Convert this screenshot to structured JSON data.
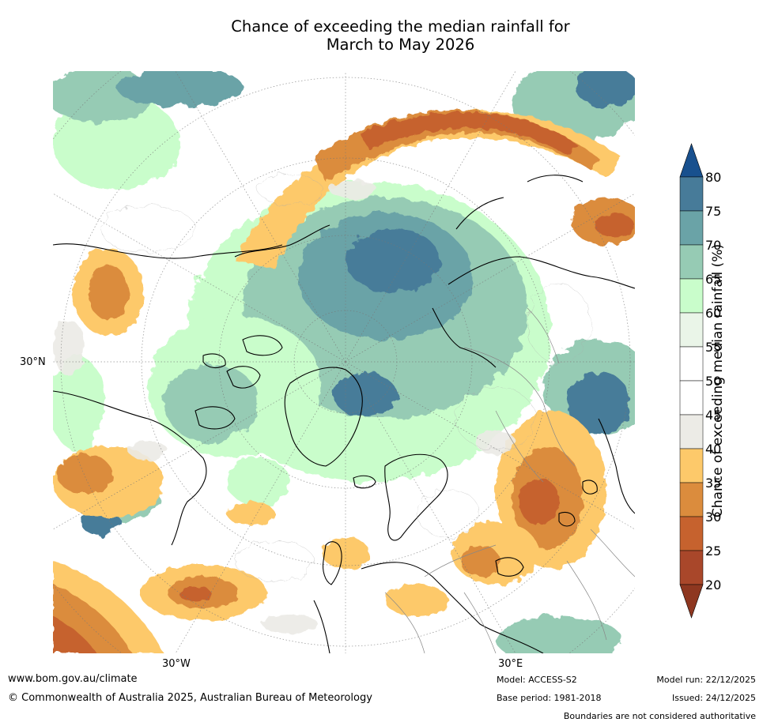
{
  "title_line1": "Chance of exceeding the median rainfall for",
  "title_line2": "March to May 2026",
  "axis_labels": {
    "lat_30n": "30°N",
    "lon_30w": "30°W",
    "lon_30e": "30°E"
  },
  "colorbar": {
    "label": "Chance of exceeding median rainfall (%)",
    "ticks": [
      "20",
      "25",
      "30",
      "35",
      "40",
      "45",
      "50",
      "55",
      "60",
      "65",
      "70",
      "75",
      "80"
    ],
    "colors": [
      "#a9472a",
      "#c6622e",
      "#db8c3d",
      "#fdc96a",
      "#ecebe6",
      "#ffffff",
      "#ffffff",
      "#eaf5e8",
      "#c9fdcb",
      "#96cbb4",
      "#6aa3a7",
      "#477b99"
    ],
    "under_color": "#8e3720",
    "over_color": "#18508e"
  },
  "footer": {
    "url": "www.bom.gov.au/climate",
    "copyright": "© Commonwealth of Australia 2025, Australian Bureau of Meteorology",
    "model": "Model: ACCESS-S2",
    "base_period": "Base period: 1981-2018",
    "model_run": "Model run: 22/12/2025",
    "issued": "Issued: 24/12/2025",
    "disclaimer": "Boundaries are not considered authoritative"
  }
}
